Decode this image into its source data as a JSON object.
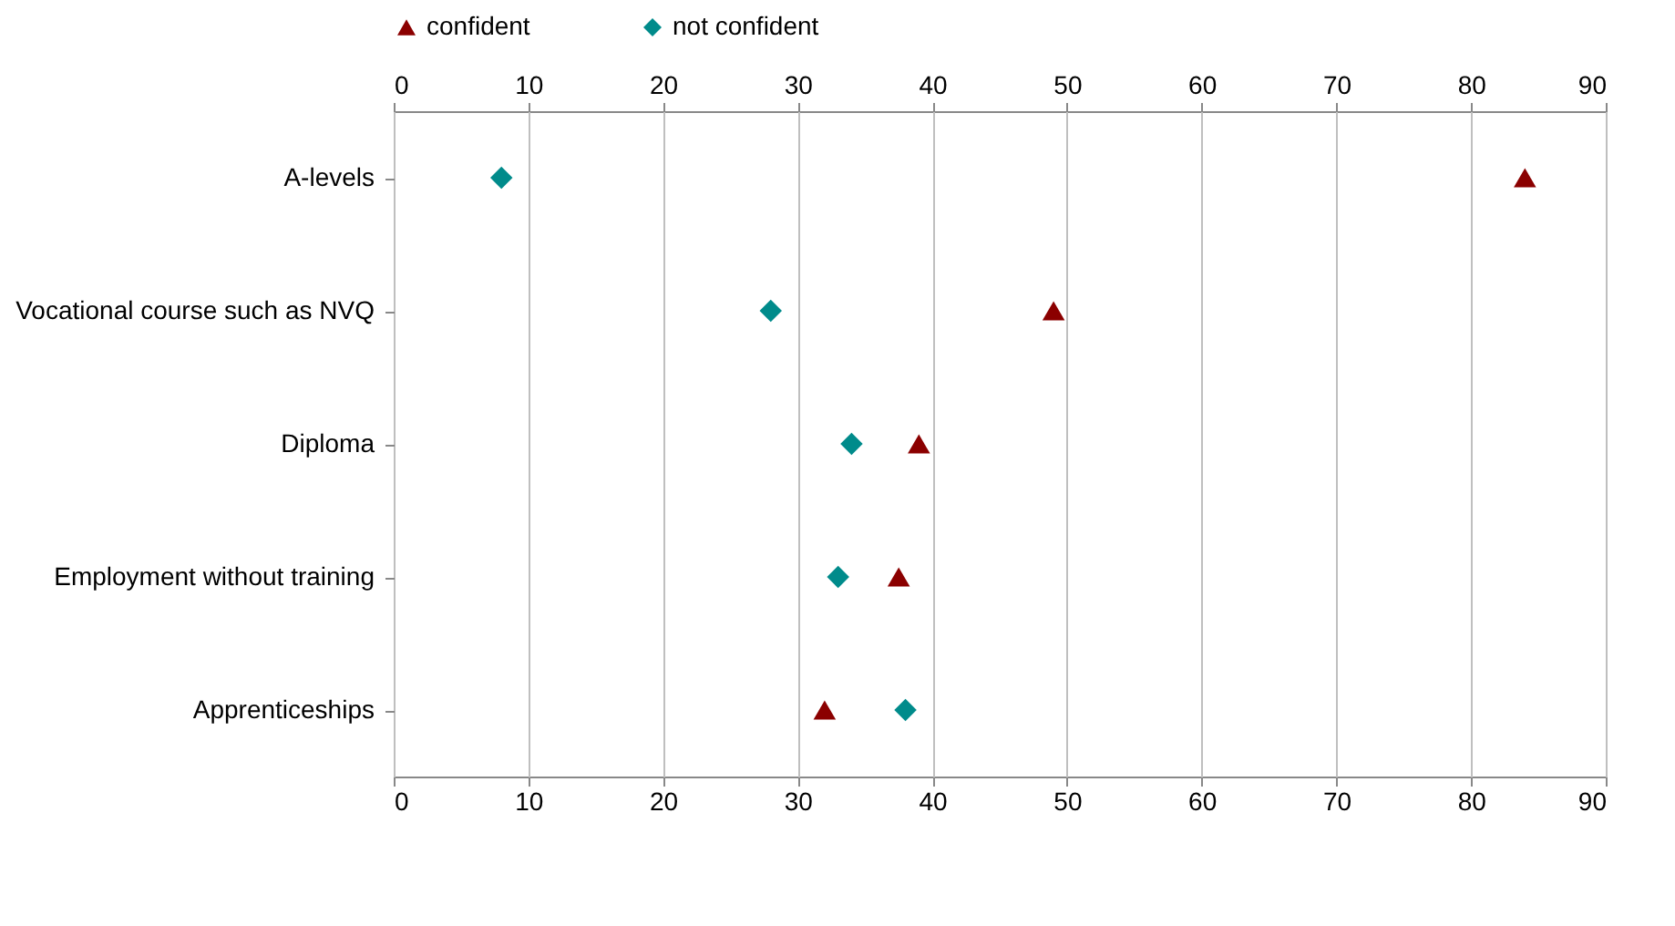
{
  "chart_data": {
    "type": "scatter",
    "orientation": "horizontal",
    "categories": [
      "A-levels",
      "Vocational course such as NVQ",
      "Diploma",
      "Employment without training",
      "Apprenticeships"
    ],
    "series": [
      {
        "name": "confident",
        "color": "#8b0000",
        "marker": "triangle",
        "values": [
          84,
          49,
          39,
          37.5,
          32
        ]
      },
      {
        "name": "not confident",
        "color": "#008b8b",
        "marker": "diamond",
        "values": [
          8,
          28,
          34,
          33,
          38
        ]
      }
    ],
    "xlim": [
      0,
      90
    ],
    "xticks": [
      0,
      10,
      20,
      30,
      40,
      50,
      60,
      70,
      80,
      90
    ],
    "x2lim": [
      0,
      90
    ],
    "x2ticks": [
      0,
      10,
      20,
      30,
      40,
      50,
      60,
      70,
      80,
      90
    ],
    "grid": "x",
    "legend": "top"
  }
}
